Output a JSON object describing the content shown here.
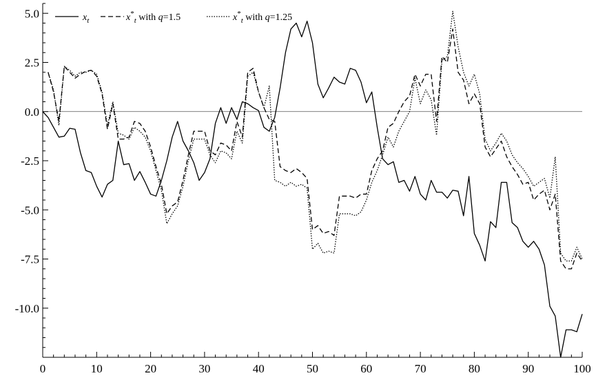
{
  "chart_data": {
    "type": "line",
    "title": "",
    "xlabel": "",
    "ylabel": "",
    "xlim": [
      0,
      100
    ],
    "ylim": [
      -12.5,
      5.5
    ],
    "x_ticks": [
      0,
      10,
      20,
      30,
      40,
      50,
      60,
      70,
      80,
      90,
      100
    ],
    "x_tick_labels": [
      "0",
      "10",
      "20",
      "30",
      "40",
      "50",
      "60",
      "70",
      "80",
      "90",
      "100"
    ],
    "y_ticks": [
      5,
      2.5,
      0,
      -2.5,
      -5,
      -7.5,
      -10
    ],
    "y_tick_labels": [
      "5.0",
      "2.5",
      "0.0",
      "-2.5",
      "-5.0",
      "-7.5",
      "-10.0"
    ],
    "grid": false,
    "reference_line_y": 0,
    "legend_placement": "top-left",
    "legend": [
      {
        "sym": "x",
        "sub": "t",
        "sup": "",
        "rest": "",
        "q": ""
      },
      {
        "sym": "x",
        "sub": "t",
        "sup": "*",
        "rest": " with ",
        "q": "q",
        "qval": "=1.5"
      },
      {
        "sym": "x",
        "sub": "t",
        "sup": "*",
        "rest": " with ",
        "q": "q",
        "qval": "=1.25"
      }
    ],
    "series": [
      {
        "dash": "solid",
        "x": [
          0,
          1,
          2,
          3,
          4,
          5,
          6,
          7,
          8,
          9,
          10,
          11,
          12,
          13,
          14,
          15,
          16,
          17,
          18,
          19,
          20,
          21,
          22,
          23,
          24,
          25,
          26,
          27,
          28,
          29,
          30,
          31,
          32,
          33,
          34,
          35,
          36,
          37,
          38,
          39,
          40,
          41,
          42,
          43,
          44,
          45,
          46,
          47,
          48,
          49,
          50,
          51,
          52,
          53,
          54,
          55,
          56,
          57,
          58,
          59,
          60,
          61,
          62,
          63,
          64,
          65,
          66,
          67,
          68,
          69,
          70,
          71,
          72,
          73,
          74,
          75,
          76,
          77,
          78,
          79,
          80,
          81,
          82,
          83,
          84,
          85,
          86,
          87,
          88,
          89,
          90,
          91,
          92,
          93,
          94,
          95,
          96,
          97,
          98,
          99,
          100
        ],
        "values": [
          0.0,
          -0.3,
          -0.8,
          -1.3,
          -1.25,
          -0.85,
          -0.9,
          -2.1,
          -3.0,
          -3.1,
          -3.8,
          -4.35,
          -3.7,
          -3.5,
          -1.5,
          -2.7,
          -2.65,
          -3.5,
          -3.05,
          -3.6,
          -4.2,
          -4.3,
          -3.5,
          -2.5,
          -1.3,
          -0.5,
          -1.5,
          -2.0,
          -2.6,
          -3.5,
          -3.1,
          -2.4,
          -0.6,
          0.2,
          -0.6,
          0.2,
          -0.4,
          0.5,
          0.4,
          0.2,
          0.05,
          -0.8,
          -1.0,
          -0.3,
          1.2,
          3.0,
          4.2,
          4.5,
          3.8,
          4.6,
          3.5,
          1.4,
          0.7,
          1.2,
          1.75,
          1.5,
          1.4,
          2.2,
          2.1,
          1.5,
          0.45,
          1.0,
          -0.8,
          -2.4,
          -2.7,
          -2.55,
          -3.6,
          -3.5,
          -4.05,
          -3.3,
          -4.2,
          -4.5,
          -3.5,
          -4.1,
          -4.1,
          -4.4,
          -4.0,
          -4.05,
          -5.3,
          -3.3,
          -6.2,
          -6.8,
          -7.6,
          -5.6,
          -5.9,
          -3.6,
          -3.6,
          -5.65,
          -5.9,
          -6.6,
          -6.9,
          -6.6,
          -7.0,
          -7.8,
          -9.9,
          -10.4,
          -12.5,
          -11.1,
          -11.1,
          -11.2,
          -10.3
        ]
      },
      {
        "dash": "dashed",
        "x": [
          1,
          2,
          3,
          4,
          5,
          6,
          7,
          8,
          9,
          10,
          11,
          12,
          13,
          14,
          15,
          16,
          17,
          18,
          19,
          20,
          21,
          22,
          23,
          24,
          25,
          26,
          27,
          28,
          29,
          30,
          31,
          32,
          33,
          34,
          35,
          36,
          37,
          38,
          39,
          40,
          41,
          42,
          43,
          44,
          45,
          46,
          47,
          48,
          49,
          50,
          51,
          52,
          53,
          54,
          55,
          56,
          57,
          58,
          59,
          60,
          61,
          62,
          63,
          64,
          65,
          66,
          67,
          68,
          69,
          70,
          71,
          72,
          73,
          74,
          75,
          76,
          77,
          78,
          79,
          80,
          81,
          82,
          83,
          84,
          85,
          86,
          87,
          88,
          89,
          90,
          91,
          92,
          93,
          94,
          95,
          96,
          97,
          98,
          99,
          100
        ],
        "values": [
          2.0,
          1.0,
          -0.5,
          2.3,
          2.0,
          1.7,
          1.9,
          2.05,
          2.1,
          1.8,
          0.9,
          -0.9,
          0.4,
          -1.4,
          -1.4,
          -1.3,
          -0.5,
          -0.6,
          -1.0,
          -1.8,
          -2.8,
          -3.7,
          -5.2,
          -4.8,
          -4.6,
          -3.5,
          -2.2,
          -1.0,
          -1.0,
          -1.0,
          -2.0,
          -2.2,
          -1.6,
          -1.7,
          -2.0,
          -0.5,
          -1.3,
          2.0,
          2.2,
          1.0,
          0.2,
          -0.4,
          -0.5,
          -2.8,
          -3.0,
          -3.1,
          -2.9,
          -3.1,
          -3.4,
          -6.0,
          -5.8,
          -6.2,
          -6.1,
          -6.3,
          -4.3,
          -4.3,
          -4.3,
          -4.4,
          -4.2,
          -4.2,
          -3.0,
          -2.4,
          -2.0,
          -0.8,
          -0.6,
          0.0,
          0.5,
          0.8,
          1.9,
          1.3,
          1.9,
          1.9,
          -0.5,
          2.8,
          2.5,
          4.2,
          2.0,
          1.6,
          0.4,
          0.9,
          0.4,
          -1.8,
          -2.3,
          -1.9,
          -1.5,
          -2.3,
          -2.8,
          -3.2,
          -3.7,
          -3.6,
          -4.5,
          -4.2,
          -4.0,
          -5.0,
          -4.2,
          -7.6,
          -8.0,
          -8.0,
          -7.2,
          -7.6
        ]
      },
      {
        "dash": "dotted",
        "x": [
          1,
          2,
          3,
          4,
          5,
          6,
          7,
          8,
          9,
          10,
          11,
          12,
          13,
          14,
          15,
          16,
          17,
          18,
          19,
          20,
          21,
          22,
          23,
          24,
          25,
          26,
          27,
          28,
          29,
          30,
          31,
          32,
          33,
          34,
          35,
          36,
          37,
          38,
          39,
          40,
          41,
          42,
          43,
          44,
          45,
          46,
          47,
          48,
          49,
          50,
          51,
          52,
          53,
          54,
          55,
          56,
          57,
          58,
          59,
          60,
          61,
          62,
          63,
          64,
          65,
          66,
          67,
          68,
          69,
          70,
          71,
          72,
          73,
          74,
          75,
          76,
          77,
          78,
          79,
          80,
          81,
          82,
          83,
          84,
          85,
          86,
          87,
          88,
          89,
          90,
          91,
          92,
          93,
          94,
          95,
          96,
          97,
          98,
          99,
          100
        ],
        "values": [
          2.0,
          1.1,
          -0.7,
          2.3,
          2.1,
          1.8,
          2.0,
          2.0,
          2.1,
          1.9,
          1.0,
          -0.7,
          0.5,
          -1.1,
          -1.2,
          -1.4,
          -0.8,
          -1.0,
          -1.3,
          -2.0,
          -3.0,
          -4.0,
          -5.7,
          -5.2,
          -4.8,
          -3.8,
          -2.5,
          -1.4,
          -1.4,
          -1.4,
          -2.2,
          -2.6,
          -2.0,
          -2.1,
          -2.4,
          -1.0,
          -1.6,
          1.8,
          2.0,
          1.0,
          0.2,
          1.3,
          -3.5,
          -3.6,
          -3.8,
          -3.6,
          -3.8,
          -3.7,
          -3.9,
          -7.0,
          -6.7,
          -7.2,
          -7.1,
          -7.2,
          -5.2,
          -5.2,
          -5.2,
          -5.3,
          -5.1,
          -4.5,
          -3.6,
          -3.0,
          -2.2,
          -1.3,
          -1.8,
          -1.0,
          -0.5,
          0.0,
          1.7,
          0.4,
          1.1,
          0.6,
          -1.2,
          2.6,
          2.8,
          5.1,
          3.3,
          2.0,
          1.3,
          1.9,
          0.9,
          -1.4,
          -2.0,
          -1.6,
          -1.1,
          -1.5,
          -2.2,
          -2.6,
          -2.9,
          -3.3,
          -3.8,
          -3.6,
          -3.4,
          -4.4,
          -2.3,
          -7.2,
          -7.6,
          -7.6,
          -6.9,
          -7.5
        ]
      }
    ]
  }
}
